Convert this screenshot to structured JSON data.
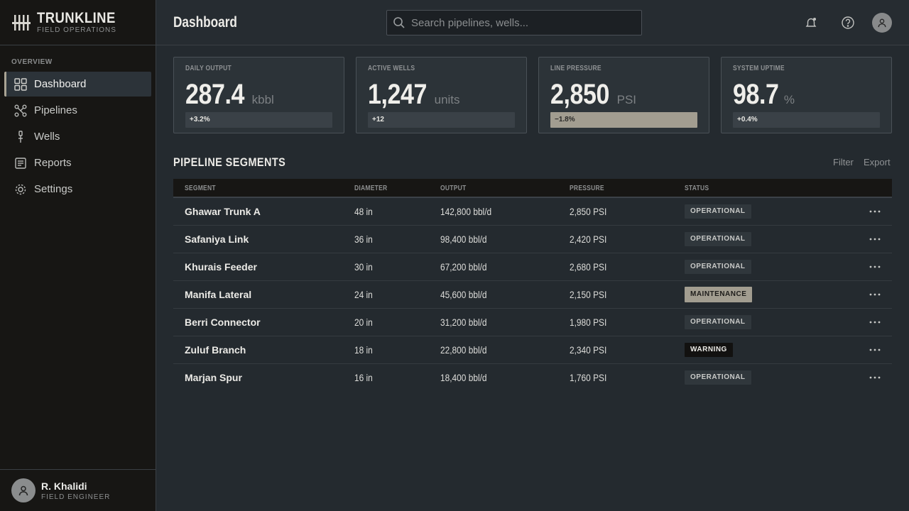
{
  "brand": {
    "name": "TRUNKLINE",
    "subtitle": "FIELD OPERATIONS"
  },
  "sidebar": {
    "section_label": "OVERVIEW",
    "items": [
      {
        "label": "Dashboard",
        "icon": "grid-icon",
        "active": true
      },
      {
        "label": "Pipelines",
        "icon": "nodes-icon"
      },
      {
        "label": "Wells",
        "icon": "well-icon"
      },
      {
        "label": "Reports",
        "icon": "report-icon"
      },
      {
        "label": "Settings",
        "icon": "gear-icon"
      }
    ],
    "user": {
      "name": "R. Khalidi",
      "role": "FIELD ENGINEER"
    }
  },
  "header": {
    "title": "Dashboard",
    "search_placeholder": "Search pipelines, wells..."
  },
  "kpis": [
    {
      "label": "DAILY OUTPUT",
      "value": "287.4",
      "unit": "kbbl",
      "delta": "+3.2%",
      "trend": "up"
    },
    {
      "label": "ACTIVE WELLS",
      "value": "1,247",
      "unit": "units",
      "delta": "+12",
      "trend": "up"
    },
    {
      "label": "LINE PRESSURE",
      "value": "2,850",
      "unit": "PSI",
      "delta": "−1.8%",
      "trend": "down"
    },
    {
      "label": "SYSTEM UPTIME",
      "value": "98.7",
      "unit": "%",
      "delta": "+0.4%",
      "trend": "up"
    }
  ],
  "segments": {
    "title": "PIPELINE SEGMENTS",
    "actions": {
      "filter": "Filter",
      "export": "Export"
    },
    "columns": [
      "SEGMENT",
      "DIAMETER",
      "OUTPUT",
      "PRESSURE",
      "STATUS"
    ],
    "rows": [
      {
        "segment": "Ghawar Trunk A",
        "diameter": "48 in",
        "output": "142,800 bbl/d",
        "pressure": "2,850 PSI",
        "status": "OPERATIONAL"
      },
      {
        "segment": "Safaniya Link",
        "diameter": "36 in",
        "output": "98,400 bbl/d",
        "pressure": "2,420 PSI",
        "status": "OPERATIONAL"
      },
      {
        "segment": "Khurais Feeder",
        "diameter": "30 in",
        "output": "67,200 bbl/d",
        "pressure": "2,680 PSI",
        "status": "OPERATIONAL"
      },
      {
        "segment": "Manifa Lateral",
        "diameter": "24 in",
        "output": "45,600 bbl/d",
        "pressure": "2,150 PSI",
        "status": "MAINTENANCE"
      },
      {
        "segment": "Berri Connector",
        "diameter": "20 in",
        "output": "31,200 bbl/d",
        "pressure": "1,980 PSI",
        "status": "OPERATIONAL"
      },
      {
        "segment": "Zuluf Branch",
        "diameter": "18 in",
        "output": "22,800 bbl/d",
        "pressure": "2,340 PSI",
        "status": "WARNING"
      },
      {
        "segment": "Marjan Spur",
        "diameter": "16 in",
        "output": "18,400 bbl/d",
        "pressure": "1,760 PSI",
        "status": "OPERATIONAL"
      }
    ]
  },
  "colors": {
    "accent": "#a29d90",
    "panel": "#2c3338",
    "sidebar": "#171614"
  }
}
